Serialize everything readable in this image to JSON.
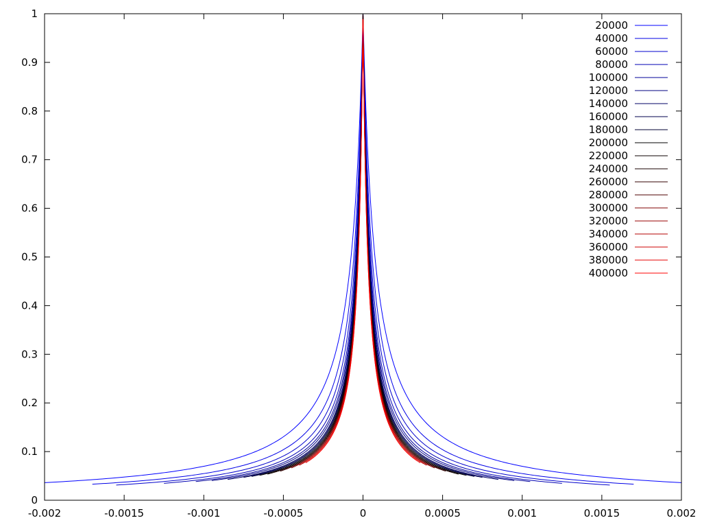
{
  "chart_data": {
    "type": "line",
    "title": "",
    "xlabel": "",
    "ylabel": "",
    "xlim": [
      -0.002,
      0.002
    ],
    "ylim": [
      0,
      1
    ],
    "grid": false,
    "legend_position": "top-right",
    "x_tick_labels": [
      "-0.002",
      "-0.0015",
      "-0.001",
      "-0.0005",
      "0",
      "0.0005",
      "0.001",
      "0.0015",
      "0.002"
    ],
    "x_ticks": [
      -0.002,
      -0.0015,
      -0.001,
      -0.0005,
      0,
      0.0005,
      0.001,
      0.0015,
      0.002
    ],
    "y_tick_labels": [
      "0",
      "0.1",
      "0.2",
      "0.3",
      "0.4",
      "0.5",
      "0.6",
      "0.7",
      "0.8",
      "0.9",
      "1"
    ],
    "y_ticks": [
      0,
      0.1,
      0.2,
      0.3,
      0.4,
      0.5,
      0.6,
      0.7,
      0.8,
      0.9,
      1
    ],
    "series": [
      {
        "name": "20000",
        "color": "#0000ff",
        "x_range": [
          -0.002,
          0.002
        ],
        "peak": 1.0,
        "half_width": 7.5e-05
      },
      {
        "name": "40000",
        "color": "#0000e6",
        "x_range": [
          -0.0017,
          0.0017
        ],
        "peak": 1.0,
        "half_width": 5.8e-05
      },
      {
        "name": "60000",
        "color": "#0000cc",
        "x_range": [
          -0.00155,
          0.00155
        ],
        "peak": 1.0,
        "half_width": 5e-05
      },
      {
        "name": "80000",
        "color": "#0000b3",
        "x_range": [
          -0.00125,
          0.00125
        ],
        "peak": 1.0,
        "half_width": 4.5e-05
      },
      {
        "name": "100000",
        "color": "#000099",
        "x_range": [
          -0.00105,
          0.00105
        ],
        "peak": 1.0,
        "half_width": 4.2e-05
      },
      {
        "name": "120000",
        "color": "#000080",
        "x_range": [
          -0.00095,
          0.00095
        ],
        "peak": 1.0,
        "half_width": 4e-05
      },
      {
        "name": "140000",
        "color": "#000066",
        "x_range": [
          -0.00085,
          0.00085
        ],
        "peak": 1.0,
        "half_width": 3.8e-05
      },
      {
        "name": "160000",
        "color": "#00004d",
        "x_range": [
          -0.00075,
          0.00075
        ],
        "peak": 1.0,
        "half_width": 3.7e-05
      },
      {
        "name": "180000",
        "color": "#000033",
        "x_range": [
          -0.0007,
          0.0007
        ],
        "peak": 1.0,
        "half_width": 3.6e-05
      },
      {
        "name": "200000",
        "color": "#000000",
        "x_range": [
          -0.00065,
          0.00065
        ],
        "peak": 1.0,
        "half_width": 3.5e-05
      },
      {
        "name": "220000",
        "color": "#0d0000",
        "x_range": [
          -0.0006,
          0.0006
        ],
        "peak": 1.0,
        "half_width": 3.4e-05
      },
      {
        "name": "240000",
        "color": "#1a0000",
        "x_range": [
          -0.00056,
          0.00056
        ],
        "peak": 1.0,
        "half_width": 3.4e-05
      },
      {
        "name": "260000",
        "color": "#330000",
        "x_range": [
          -0.00052,
          0.00052
        ],
        "peak": 1.0,
        "half_width": 3.3e-05
      },
      {
        "name": "280000",
        "color": "#4d0000",
        "x_range": [
          -0.00048,
          0.00048
        ],
        "peak": 1.0,
        "half_width": 3.3e-05
      },
      {
        "name": "300000",
        "color": "#800000",
        "x_range": [
          -0.00045,
          0.00045
        ],
        "peak": 1.0,
        "half_width": 3.2e-05
      },
      {
        "name": "320000",
        "color": "#990000",
        "x_range": [
          -0.00042,
          0.00042
        ],
        "peak": 1.0,
        "half_width": 3.2e-05
      },
      {
        "name": "340000",
        "color": "#b30000",
        "x_range": [
          -0.0004,
          0.0004
        ],
        "peak": 1.0,
        "half_width": 3.1e-05
      },
      {
        "name": "360000",
        "color": "#cc0000",
        "x_range": [
          -0.00038,
          0.00038
        ],
        "peak": 1.0,
        "half_width": 3.1e-05
      },
      {
        "name": "380000",
        "color": "#e60000",
        "x_range": [
          -0.00036,
          0.00036
        ],
        "peak": 1.0,
        "half_width": 3e-05
      },
      {
        "name": "400000",
        "color": "#ff0000",
        "x_range": [
          -0.00034,
          0.00034
        ],
        "peak": 1.0,
        "half_width": 3e-05
      }
    ]
  }
}
